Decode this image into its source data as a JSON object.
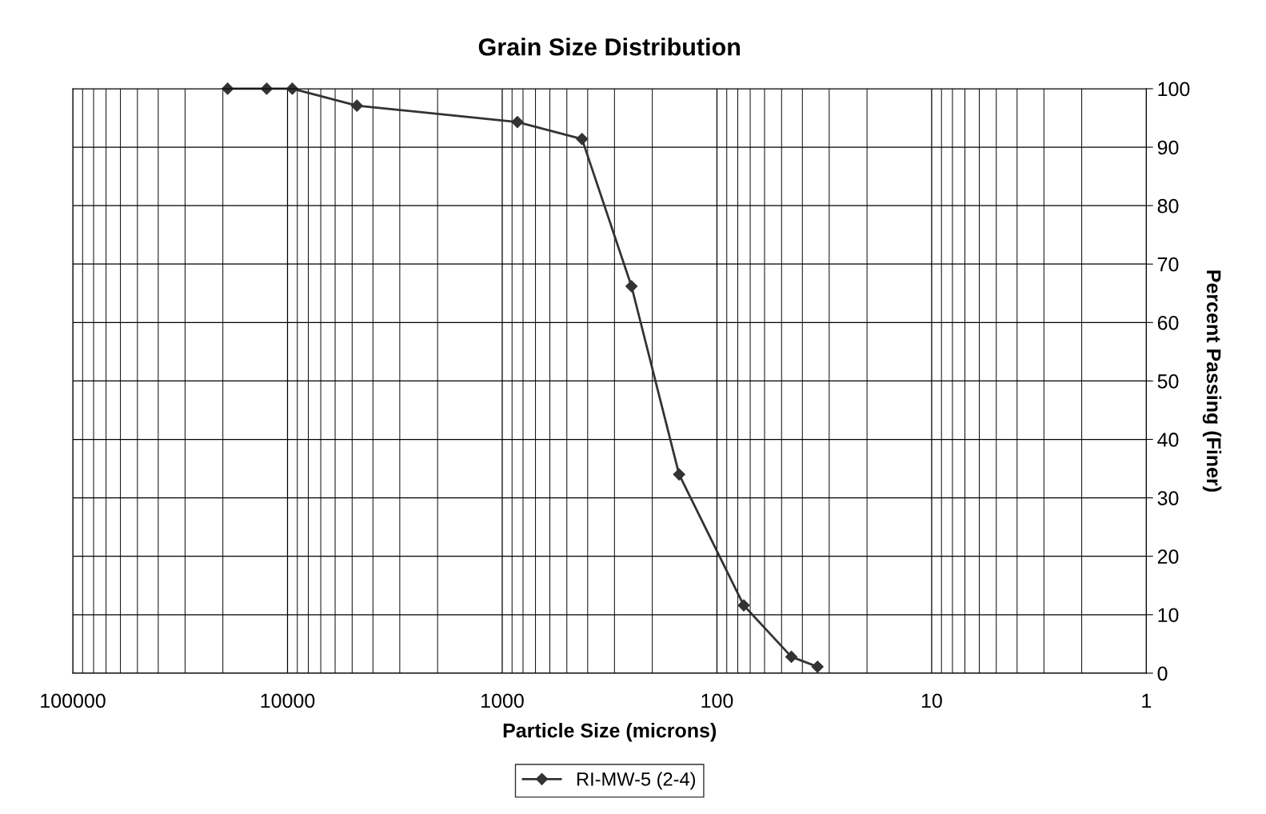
{
  "chart_data": {
    "type": "line",
    "title": "Grain Size Distribution",
    "xlabel": "Particle Size (microns)",
    "ylabel": "Percent Passing (Finer)",
    "log": "x",
    "xlim": [
      100000,
      1
    ],
    "xticks": [
      100000,
      10000,
      1000,
      100,
      10,
      1
    ],
    "ylim": [
      0,
      100
    ],
    "yticks": [
      0,
      10,
      20,
      30,
      40,
      50,
      60,
      70,
      80,
      90,
      100
    ],
    "grid": true,
    "legend": "bottom",
    "marker": "diamond",
    "line_style": "solid",
    "series": [
      {
        "name": "RI-MW-5 (2-4)",
        "color": "#333333",
        "x": [
          19000,
          12500,
          9500,
          4750,
          850,
          425,
          250,
          150,
          75,
          45,
          34
        ],
        "values": [
          100,
          100,
          100,
          97.1,
          94.3,
          91.4,
          66.2,
          34,
          11.6,
          2.8,
          1.1
        ]
      }
    ]
  }
}
